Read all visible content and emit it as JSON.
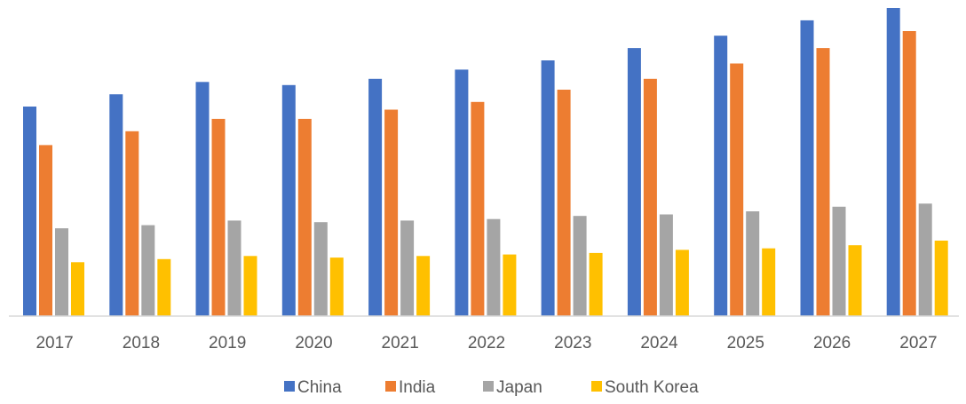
{
  "chart_data": {
    "type": "bar",
    "title": "",
    "xlabel": "",
    "ylabel": "",
    "ylim": [
      0,
      100
    ],
    "grid": false,
    "legend_position": "bottom",
    "categories": [
      "2017",
      "2018",
      "2019",
      "2020",
      "2021",
      "2022",
      "2023",
      "2024",
      "2025",
      "2026",
      "2027"
    ],
    "series": [
      {
        "name": "China",
        "color": "#4472C4",
        "values": [
          68,
          72,
          76,
          75,
          77,
          80,
          83,
          87,
          91,
          96,
          100
        ]
      },
      {
        "name": "India",
        "color": "#ED7D31",
        "values": [
          55.5,
          60,
          64,
          64,
          67,
          69.5,
          73.5,
          77,
          82,
          87,
          92.5
        ]
      },
      {
        "name": "Japan",
        "color": "#A5A5A5",
        "values": [
          28.5,
          29.5,
          31,
          30.5,
          31,
          31.5,
          32.5,
          33,
          34,
          35.5,
          36.5
        ]
      },
      {
        "name": "South Korea",
        "color": "#FFC000",
        "values": [
          17.5,
          18.5,
          19.5,
          19,
          19.5,
          20,
          20.5,
          21.5,
          22,
          23,
          24.5
        ]
      }
    ]
  }
}
